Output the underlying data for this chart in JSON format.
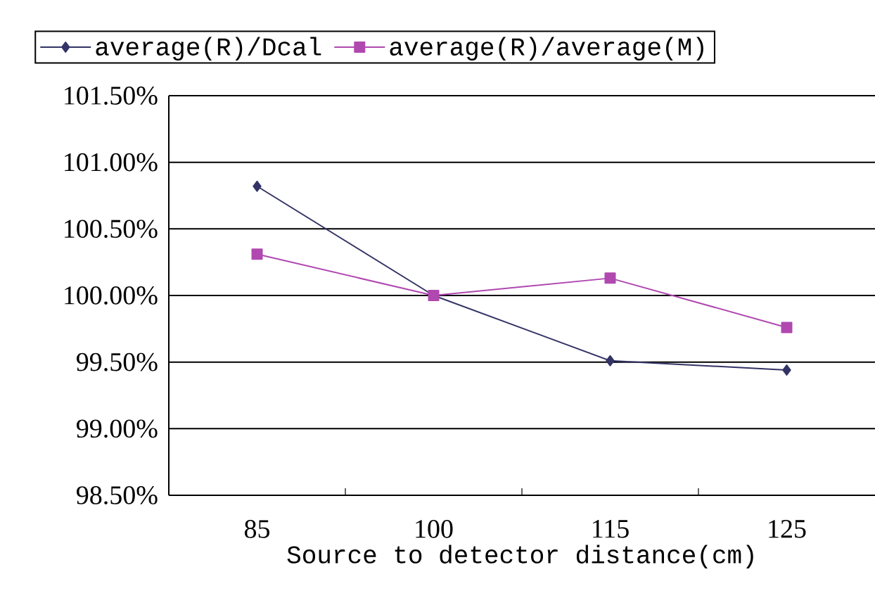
{
  "chart_data": {
    "type": "line",
    "xlabel": "Source to detector distance(cm)",
    "categories": [
      "85",
      "100",
      "115",
      "125"
    ],
    "series": [
      {
        "name": "average(R)/Dcal",
        "color": "#333366",
        "marker": "diamond",
        "values": [
          100.82,
          100.0,
          99.51,
          99.44
        ]
      },
      {
        "name": "average(R)/average(M)",
        "color": "#b048b0",
        "marker": "square",
        "values": [
          100.31,
          100.0,
          100.13,
          99.76
        ]
      }
    ],
    "ylim": [
      98.5,
      101.5
    ],
    "yticks": [
      {
        "value": 98.5,
        "label": "98.50%"
      },
      {
        "value": 99.0,
        "label": "99.00%"
      },
      {
        "value": 99.5,
        "label": "99.50%"
      },
      {
        "value": 100.0,
        "label": "100.00%"
      },
      {
        "value": 100.5,
        "label": "100.50%"
      },
      {
        "value": 101.0,
        "label": "101.00%"
      },
      {
        "value": 101.5,
        "label": "101.50%"
      }
    ],
    "grid": "y",
    "legend": "top",
    "line_style": "solid"
  }
}
